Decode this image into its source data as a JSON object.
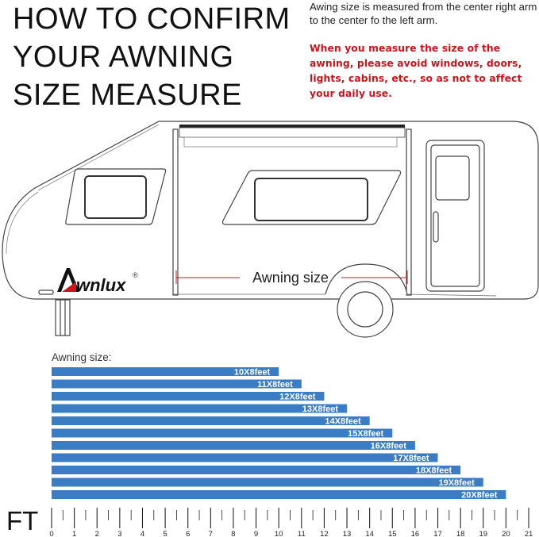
{
  "header": {
    "title_lines": [
      "HOW TO CONFIRM",
      "YOUR AWNING",
      "SIZE MEASURE"
    ],
    "note": "Awing size is measured from the center right arm to the center fo the left arm.",
    "warning": "When you measure the size of the awning, please avoid windows, doors, lights, cabins, etc., so as not to affect your daily use."
  },
  "diagram": {
    "dimension_label": "Awning size",
    "logo_text": "Awnlux",
    "logo_mark": "®"
  },
  "colors": {
    "bar": "#3a7dc4",
    "accent_red": "#c8141e",
    "logo_red": "#d0121b"
  },
  "chart_data": {
    "type": "bar",
    "orientation": "horizontal",
    "title": "Awning size:",
    "unit_label": "FT",
    "categories": [
      "10X8feet",
      "11X8feet",
      "12X8feet",
      "13X8feet",
      "14X8feet",
      "15X8feet",
      "16X8feet",
      "17X8feet",
      "18X8feet",
      "19X8feet",
      "20X8feet"
    ],
    "values": [
      10,
      11,
      12,
      13,
      14,
      15,
      16,
      17,
      18,
      19,
      20
    ],
    "xlim": [
      0,
      21
    ],
    "ticks": [
      "0",
      "1",
      "2",
      "3",
      "4",
      "5",
      "6",
      "7",
      "8",
      "9",
      "10",
      "11",
      "12",
      "13",
      "14",
      "15",
      "16",
      "17",
      "18",
      "19",
      "20",
      "21"
    ],
    "minor_tick_step": 0.5,
    "grid": false
  }
}
